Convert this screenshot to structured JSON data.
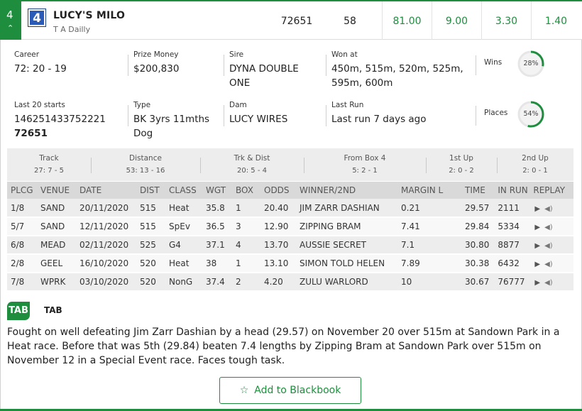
{
  "header": {
    "box_number": "4",
    "collapse_icon": "chevron-up-icon",
    "rug_number": "4",
    "dog_name": "LUCY'S MILO",
    "trainer": "T A Dailly",
    "id_number": "72651",
    "rating": "58",
    "odds": [
      "81.00",
      "9.00",
      "3.30",
      "1.40"
    ]
  },
  "details": {
    "career": {
      "label": "Career",
      "value": "72: 20 - 19"
    },
    "prize_money": {
      "label": "Prize Money",
      "value": "$200,830"
    },
    "sire": {
      "label": "Sire",
      "value": "DYNA DOUBLE ONE"
    },
    "won_at": {
      "label": "Won at",
      "value": "450m, 515m, 520m, 525m, 595m, 600m"
    },
    "wins": {
      "label": "Wins",
      "value": "28%",
      "percent": 28
    },
    "last_20": {
      "label": "Last 20 starts",
      "value": "146251433752221",
      "value_bold": "72651"
    },
    "type": {
      "label": "Type",
      "value": "BK 3yrs 11mths Dog"
    },
    "dam": {
      "label": "Dam",
      "value": "LUCY WIRES"
    },
    "last_run": {
      "label": "Last Run",
      "value": "Last run 7 days ago"
    },
    "places": {
      "label": "Places",
      "value": "54%",
      "percent": 54
    }
  },
  "summary": [
    {
      "title": "Track",
      "value": "27: 7 - 5"
    },
    {
      "title": "Distance",
      "value": "53: 13 - 16"
    },
    {
      "title": "Trk & Dist",
      "value": "20: 5 - 4"
    },
    {
      "title": "From Box 4",
      "value": "5: 2 - 1"
    },
    {
      "title": "1st Up",
      "value": "2: 0 - 2"
    },
    {
      "title": "2nd Up",
      "value": "2: 0 - 1"
    }
  ],
  "form": {
    "columns": [
      "PLCG",
      "VENUE",
      "DATE",
      "DIST",
      "CLASS",
      "WGT",
      "BOX",
      "ODDS",
      "WINNER/2ND",
      "MARGIN L",
      "TIME",
      "IN RUN",
      "REPLAY"
    ],
    "rows": [
      [
        "1/8",
        "SAND",
        "20/11/2020",
        "515",
        "Heat",
        "35.8",
        "1",
        "20.40",
        "JIM ZARR DASHIAN",
        "0.21",
        "29.57",
        "2111"
      ],
      [
        "5/7",
        "SAND",
        "12/11/2020",
        "515",
        "SpEv",
        "36.5",
        "3",
        "12.90",
        "ZIPPING BRAM",
        "7.41",
        "29.84",
        "5334"
      ],
      [
        "6/8",
        "MEAD",
        "02/11/2020",
        "525",
        "G4",
        "37.1",
        "4",
        "13.70",
        "AUSSIE SECRET",
        "7.1",
        "30.80",
        "8877"
      ],
      [
        "2/8",
        "GEEL",
        "16/10/2020",
        "520",
        "Heat",
        "38",
        "1",
        "13.10",
        "SIMON TOLD HELEN",
        "7.89",
        "30.38",
        "6432"
      ],
      [
        "7/8",
        "WPRK",
        "03/10/2020",
        "520",
        "NonG",
        "37.4",
        "2",
        "4.20",
        "ZULU WARLORD",
        "10",
        "30.67",
        "76777"
      ]
    ]
  },
  "tab": {
    "logo_text": "TAB",
    "label": "TAB",
    "comment": "Fought on well defeating Jim Zarr Dashian by a head (29.57) on November 20 over 515m at Sandown Park in a Heat race. Before that was 5th (29.84) beaten 7.4 lengths by Zipping Bram at Sandown Park over 515m on November 12 in a Special Event race. Faces tough task."
  },
  "blackbook": {
    "label": "Add to Blackbook",
    "icon": "star-outline-icon"
  },
  "colors": {
    "accent": "#1e8e3e",
    "rug_blue": "#2a5bb8",
    "ring_track": "#e6e6e6"
  }
}
